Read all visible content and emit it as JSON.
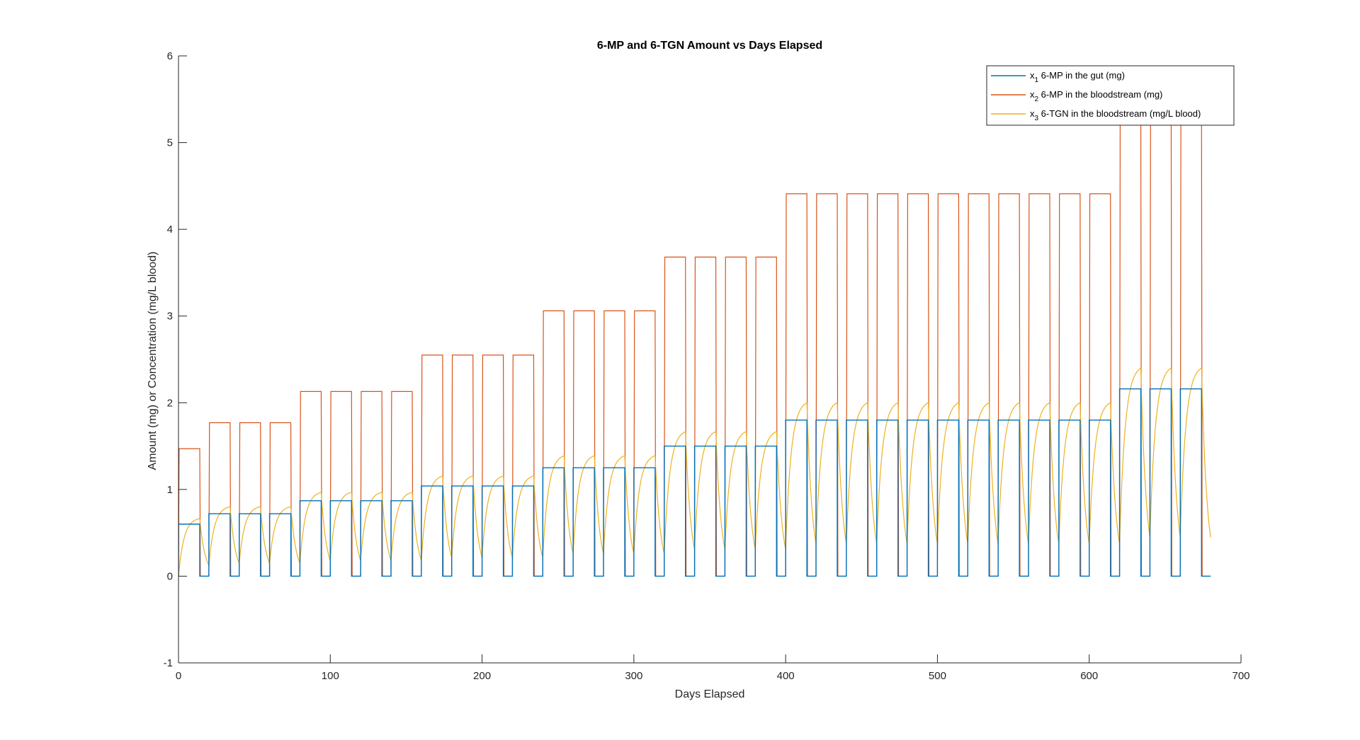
{
  "chart_data": {
    "type": "line",
    "title": "6-MP and 6-TGN Amount vs Days Elapsed",
    "xlabel": "Days Elapsed",
    "ylabel": "Amount (mg) or Concentration (mg/L blood)",
    "xlim": [
      0,
      700
    ],
    "ylim": [
      -1,
      6
    ],
    "xticks": [
      0,
      100,
      200,
      300,
      400,
      500,
      600,
      700
    ],
    "yticks": [
      -1,
      0,
      1,
      2,
      3,
      4,
      5,
      6
    ],
    "xtick_labels": [
      "0",
      "100",
      "200",
      "300",
      "400",
      "500",
      "600",
      "700"
    ],
    "ytick_labels": [
      "-1",
      "0",
      "1",
      "2",
      "3",
      "4",
      "5",
      "6"
    ],
    "grid": false,
    "legend_position": "top-right",
    "dose_cycle_days": 20,
    "on_days": 14,
    "off_days": 6,
    "end_day": 680,
    "cycles": [
      {
        "start": 0,
        "gut": 0.6,
        "blood": 1.47
      },
      {
        "start": 20,
        "gut": 0.72,
        "blood": 1.77
      },
      {
        "start": 40,
        "gut": 0.72,
        "blood": 1.77
      },
      {
        "start": 60,
        "gut": 0.72,
        "blood": 1.77
      },
      {
        "start": 80,
        "gut": 0.87,
        "blood": 2.13
      },
      {
        "start": 100,
        "gut": 0.87,
        "blood": 2.13
      },
      {
        "start": 120,
        "gut": 0.87,
        "blood": 2.13
      },
      {
        "start": 140,
        "gut": 0.87,
        "blood": 2.13
      },
      {
        "start": 160,
        "gut": 1.04,
        "blood": 2.55
      },
      {
        "start": 180,
        "gut": 1.04,
        "blood": 2.55
      },
      {
        "start": 200,
        "gut": 1.04,
        "blood": 2.55
      },
      {
        "start": 220,
        "gut": 1.04,
        "blood": 2.55
      },
      {
        "start": 240,
        "gut": 1.25,
        "blood": 3.06
      },
      {
        "start": 260,
        "gut": 1.25,
        "blood": 3.06
      },
      {
        "start": 280,
        "gut": 1.25,
        "blood": 3.06
      },
      {
        "start": 300,
        "gut": 1.25,
        "blood": 3.06
      },
      {
        "start": 320,
        "gut": 1.5,
        "blood": 3.68
      },
      {
        "start": 340,
        "gut": 1.5,
        "blood": 3.68
      },
      {
        "start": 360,
        "gut": 1.5,
        "blood": 3.68
      },
      {
        "start": 380,
        "gut": 1.5,
        "blood": 3.68
      },
      {
        "start": 400,
        "gut": 1.8,
        "blood": 4.41
      },
      {
        "start": 420,
        "gut": 1.8,
        "blood": 4.41
      },
      {
        "start": 440,
        "gut": 1.8,
        "blood": 4.41
      },
      {
        "start": 460,
        "gut": 1.8,
        "blood": 4.41
      },
      {
        "start": 480,
        "gut": 1.8,
        "blood": 4.41
      },
      {
        "start": 500,
        "gut": 1.8,
        "blood": 4.41
      },
      {
        "start": 520,
        "gut": 1.8,
        "blood": 4.41
      },
      {
        "start": 540,
        "gut": 1.8,
        "blood": 4.41
      },
      {
        "start": 560,
        "gut": 1.8,
        "blood": 4.41
      },
      {
        "start": 580,
        "gut": 1.8,
        "blood": 4.41
      },
      {
        "start": 600,
        "gut": 1.8,
        "blood": 4.41
      },
      {
        "start": 620,
        "gut": 2.16,
        "blood": 5.29
      },
      {
        "start": 640,
        "gut": 2.16,
        "blood": 5.29
      },
      {
        "start": 660,
        "gut": 2.16,
        "blood": 5.29
      }
    ],
    "series": [
      {
        "name": "x₁ 6-MP in the gut (mg)",
        "name_parts": [
          "x",
          "1",
          " 6-MP in the gut (mg)"
        ],
        "color": "#0072BD"
      },
      {
        "name": "x₂ 6-MP in the bloodstream (mg)",
        "name_parts": [
          "x",
          "2",
          " 6-MP in the bloodstream (mg)"
        ],
        "color": "#D95319"
      },
      {
        "name": "x₃ 6-TGN in the bloodstream (mg/L blood)",
        "name_parts": [
          "x",
          "3",
          " 6-TGN in the bloodstream (mg/L blood)"
        ],
        "color": "#EDB120"
      }
    ]
  }
}
